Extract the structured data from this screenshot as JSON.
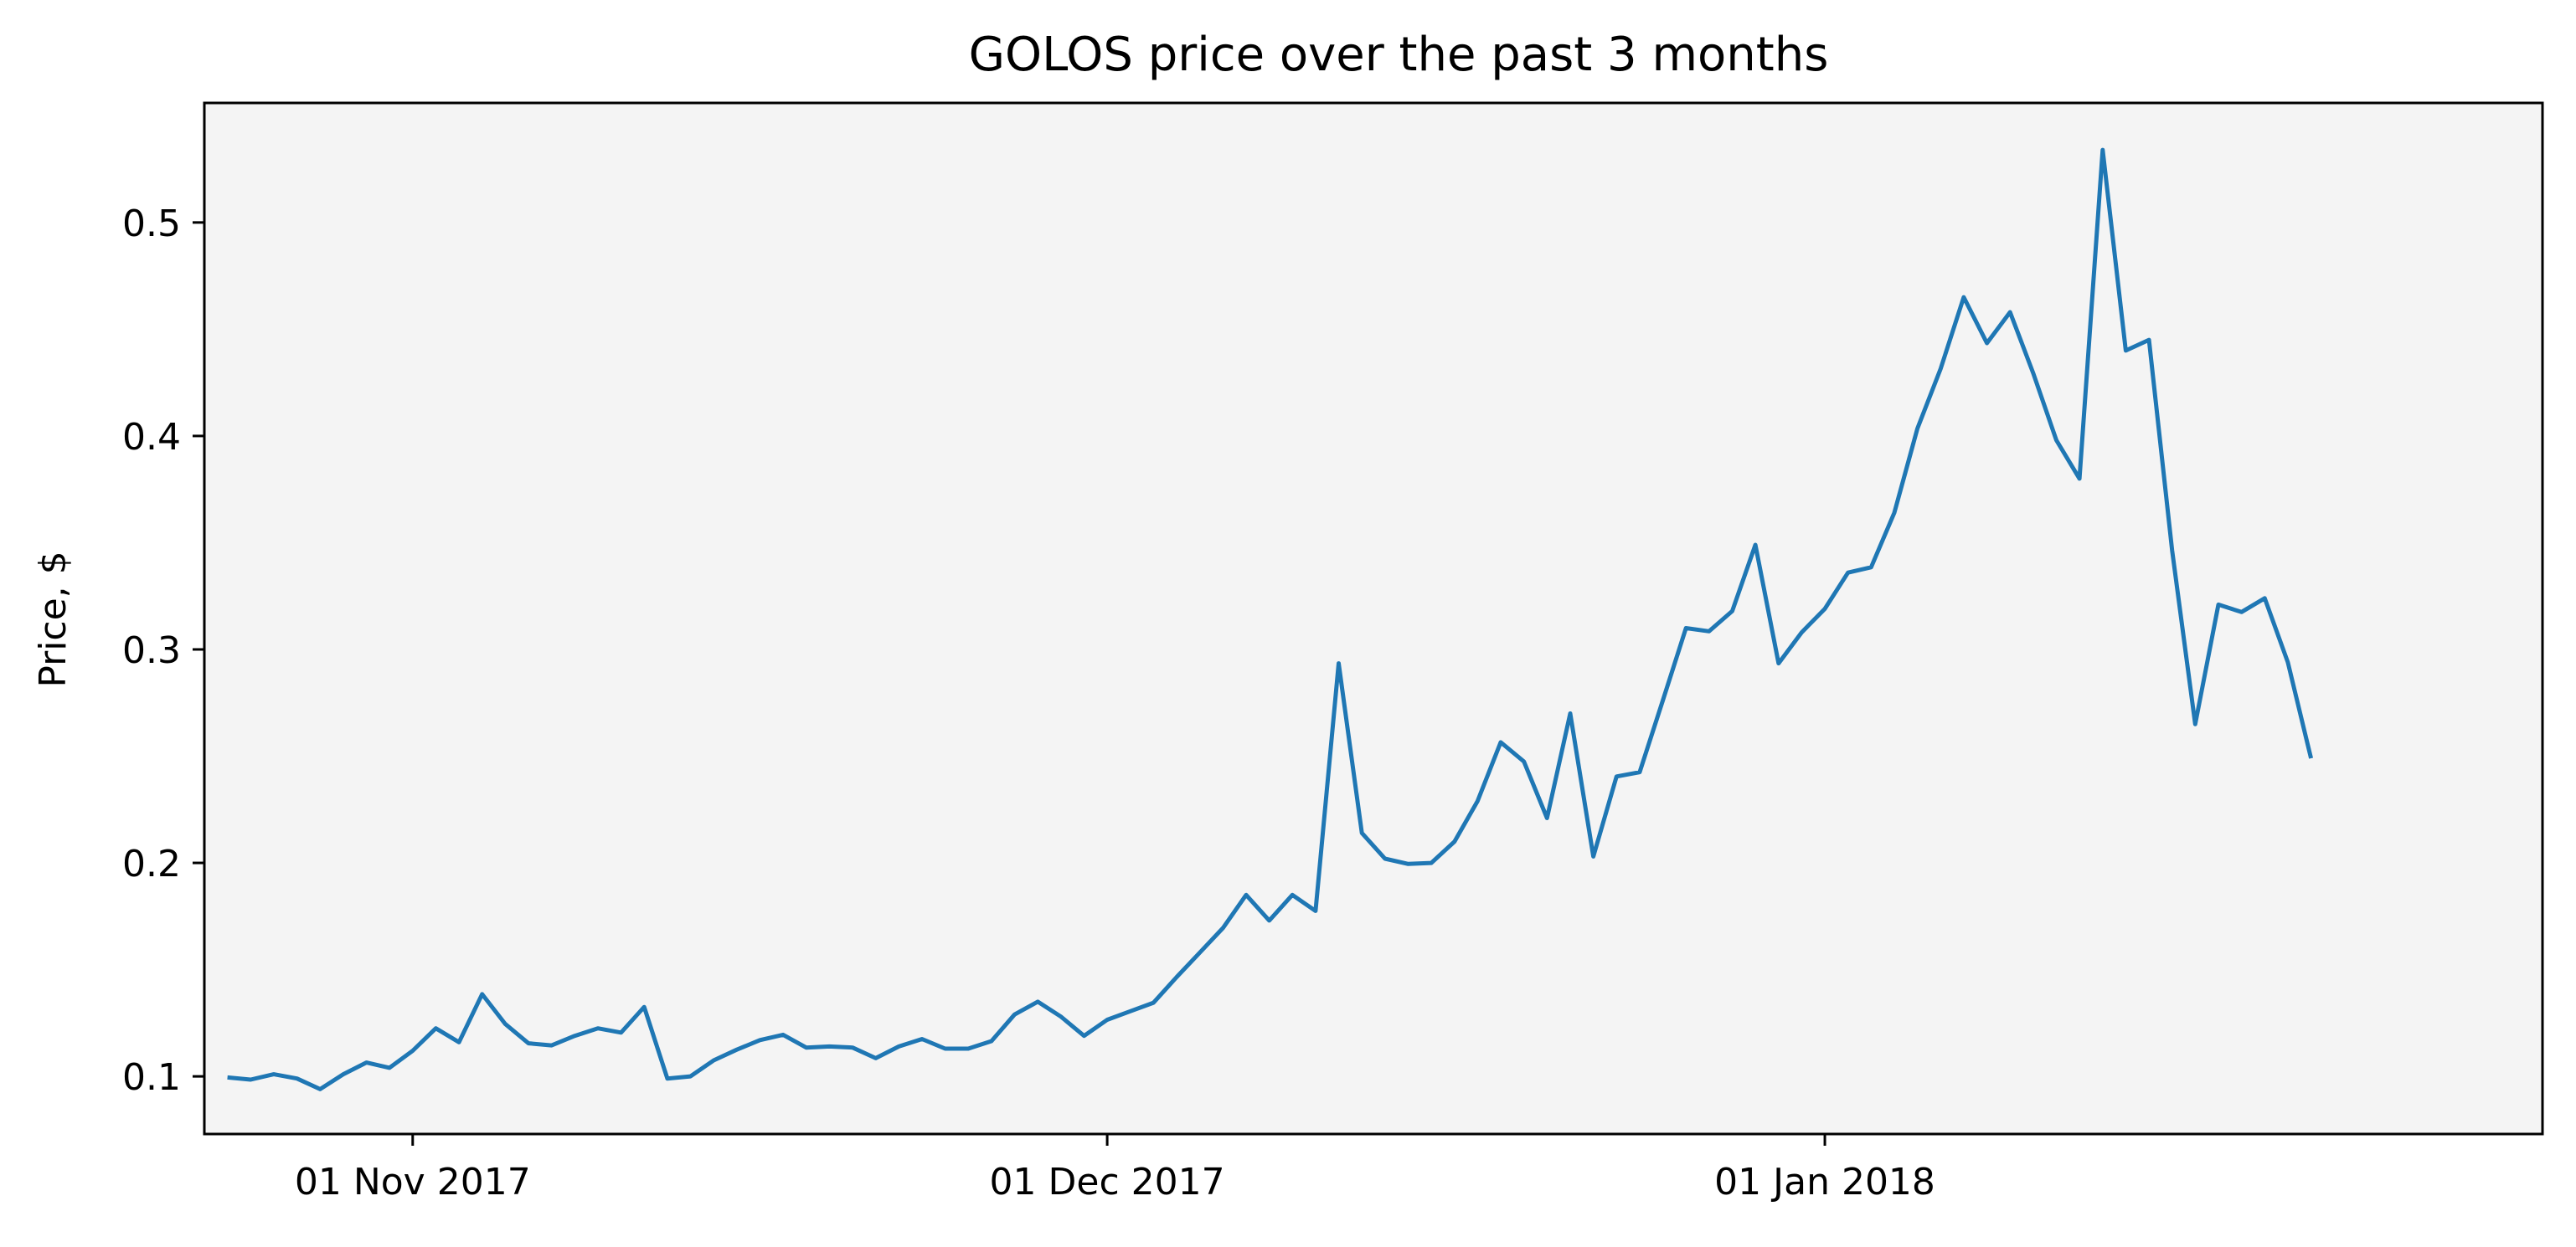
{
  "chart_data": {
    "type": "line",
    "title": "GOLOS price over the past 3 months",
    "xlabel": "",
    "ylabel": "Price, $",
    "x_start": "2017-10-24",
    "x_step_days": 1,
    "xlim": [
      "2017-10-23",
      "2018-02-01"
    ],
    "ylim": [
      0.073,
      0.556
    ],
    "grid": false,
    "background": "#f4f4f4",
    "line_color": "#1f77b4",
    "x_ticks": [
      {
        "date": "2017-11-01",
        "label": "01 Nov 2017"
      },
      {
        "date": "2017-12-01",
        "label": "01 Dec 2017"
      },
      {
        "date": "2018-01-01",
        "label": "01 Jan 2018"
      }
    ],
    "y_ticks": [
      {
        "value": 0.1,
        "label": "0.1"
      },
      {
        "value": 0.2,
        "label": "0.2"
      },
      {
        "value": 0.3,
        "label": "0.3"
      },
      {
        "value": 0.4,
        "label": "0.4"
      },
      {
        "value": 0.5,
        "label": "0.5"
      }
    ],
    "series": [
      {
        "values": [
          0.0995,
          0.0985,
          0.101,
          0.099,
          0.094,
          0.101,
          0.1065,
          0.104,
          0.112,
          0.1225,
          0.116,
          0.1385,
          0.1245,
          0.1155,
          0.1145,
          0.119,
          0.1225,
          0.1205,
          0.1325,
          0.099,
          0.1,
          0.1075,
          0.1125,
          0.117,
          0.1195,
          0.1135,
          0.114,
          0.1135,
          0.1085,
          0.114,
          0.1175,
          0.113,
          0.113,
          0.1165,
          0.129,
          0.135,
          0.128,
          0.119,
          0.1265,
          0.1305,
          0.1345,
          0.1465,
          0.158,
          0.1695,
          0.185,
          0.173,
          0.185,
          0.1775,
          0.2935,
          0.214,
          0.202,
          0.1995,
          0.2,
          0.21,
          0.229,
          0.2565,
          0.2475,
          0.221,
          0.27,
          0.203,
          0.2405,
          0.2425,
          0.276,
          0.31,
          0.3085,
          0.318,
          0.349,
          0.2935,
          0.308,
          0.319,
          0.336,
          0.3385,
          0.364,
          0.4035,
          0.4315,
          0.465,
          0.4435,
          0.458,
          0.4295,
          0.398,
          0.38,
          0.534,
          0.44,
          0.445,
          0.3465,
          0.265,
          0.321,
          0.3175,
          0.324,
          0.294,
          0.249
        ]
      }
    ]
  }
}
